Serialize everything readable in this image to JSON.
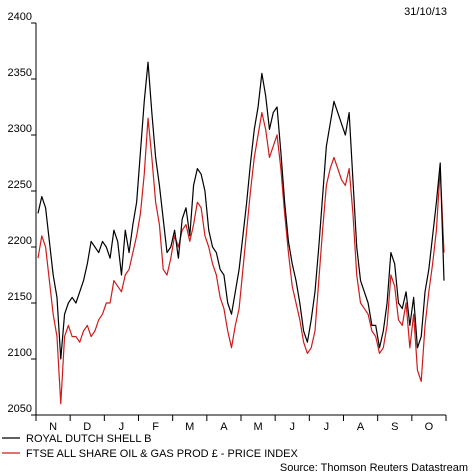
{
  "chart_data": {
    "type": "line",
    "date": "31/10/13",
    "source": "Source: Thomson Reuters Datastream",
    "ylim": [
      2050,
      2400
    ],
    "yticks": [
      2050,
      2100,
      2150,
      2200,
      2250,
      2300,
      2350,
      2400
    ],
    "grid": false,
    "legend_position": "bottom-left",
    "months": [
      "N",
      "D",
      "J",
      "F",
      "M",
      "A",
      "M",
      "J",
      "J",
      "A",
      "S",
      "O"
    ],
    "series": [
      {
        "name": "ROYAL DUTCH SHELL B",
        "color": "#000000",
        "values": [
          2230,
          2245,
          2235,
          2205,
          2175,
          2155,
          2100,
          2140,
          2150,
          2155,
          2150,
          2160,
          2170,
          2185,
          2205,
          2200,
          2195,
          2205,
          2200,
          2190,
          2215,
          2205,
          2175,
          2215,
          2195,
          2220,
          2240,
          2285,
          2330,
          2365,
          2320,
          2280,
          2255,
          2225,
          2195,
          2200,
          2215,
          2190,
          2225,
          2235,
          2210,
          2255,
          2270,
          2265,
          2250,
          2215,
          2200,
          2195,
          2180,
          2175,
          2150,
          2140,
          2160,
          2180,
          2210,
          2240,
          2275,
          2305,
          2325,
          2355,
          2335,
          2305,
          2320,
          2325,
          2285,
          2240,
          2205,
          2185,
          2170,
          2150,
          2125,
          2115,
          2135,
          2160,
          2200,
          2245,
          2290,
          2310,
          2330,
          2320,
          2310,
          2300,
          2320,
          2260,
          2200,
          2170,
          2160,
          2150,
          2130,
          2130,
          2110,
          2125,
          2150,
          2195,
          2185,
          2150,
          2145,
          2160,
          2130,
          2155,
          2110,
          2120,
          2160,
          2180,
          2210,
          2240,
          2275,
          2170
        ]
      },
      {
        "name": "FTSE ALL SHARE OIL & GAS PROD £ - PRICE INDEX",
        "color": "#d11a1a",
        "values": [
          2190,
          2210,
          2200,
          2170,
          2140,
          2120,
          2060,
          2120,
          2130,
          2120,
          2120,
          2115,
          2125,
          2130,
          2120,
          2125,
          2135,
          2140,
          2150,
          2150,
          2170,
          2165,
          2160,
          2175,
          2180,
          2195,
          2210,
          2230,
          2265,
          2315,
          2280,
          2240,
          2220,
          2180,
          2175,
          2190,
          2210,
          2200,
          2215,
          2220,
          2205,
          2220,
          2240,
          2235,
          2210,
          2200,
          2185,
          2175,
          2155,
          2145,
          2125,
          2110,
          2130,
          2145,
          2180,
          2215,
          2250,
          2280,
          2300,
          2320,
          2305,
          2280,
          2290,
          2300,
          2270,
          2230,
          2195,
          2165,
          2150,
          2135,
          2115,
          2105,
          2110,
          2125,
          2170,
          2215,
          2255,
          2270,
          2280,
          2270,
          2260,
          2255,
          2270,
          2230,
          2175,
          2150,
          2145,
          2140,
          2125,
          2120,
          2105,
          2110,
          2130,
          2175,
          2165,
          2135,
          2130,
          2150,
          2110,
          2140,
          2090,
          2080,
          2130,
          2160,
          2185,
          2215,
          2270,
          2195
        ]
      }
    ]
  }
}
